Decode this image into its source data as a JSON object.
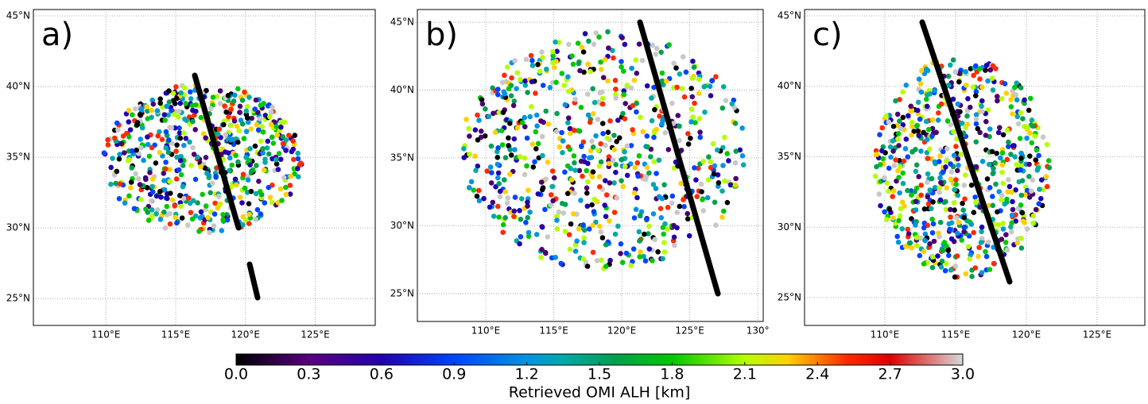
{
  "panels": [
    {
      "label": "a)",
      "lonlim": [
        104.8,
        129.3
      ],
      "latlim": [
        23.1,
        45.45
      ],
      "lat_ticks": [
        {
          "value": 45,
          "label": "45°N"
        },
        {
          "value": 40,
          "label": "40°N"
        },
        {
          "value": 35,
          "label": "35°N"
        },
        {
          "value": 30,
          "label": "30°N"
        },
        {
          "value": 25,
          "label": "25°N"
        }
      ],
      "lon_ticks": [
        {
          "value": 110,
          "label": "110°E"
        },
        {
          "value": 115,
          "label": "115°E"
        },
        {
          "value": 120,
          "label": "120°E"
        },
        {
          "value": 125,
          "label": "125°E"
        }
      ]
    },
    {
      "label": "b)",
      "lonlim": [
        104.97,
        130.4
      ],
      "latlim": [
        22.95,
        45.94
      ],
      "lat_ticks": [
        {
          "value": 45,
          "label": "45°N"
        },
        {
          "value": 40,
          "label": "40°N"
        },
        {
          "value": 35,
          "label": "35°N"
        },
        {
          "value": 30,
          "label": "30°N"
        },
        {
          "value": 25,
          "label": "25°N"
        }
      ],
      "lon_ticks": [
        {
          "value": 110,
          "label": "110°E"
        },
        {
          "value": 115,
          "label": "115°E"
        },
        {
          "value": 120,
          "label": "120°E"
        },
        {
          "value": 125,
          "label": "125°E"
        },
        {
          "value": 130,
          "label": "130°"
        }
      ]
    },
    {
      "label": "c)",
      "lonlim": [
        104.33,
        128.37
      ],
      "latlim": [
        23.03,
        45.45
      ],
      "lat_ticks": [
        {
          "value": 45,
          "label": "45°N"
        },
        {
          "value": 40,
          "label": "40°N"
        },
        {
          "value": 35,
          "label": "35°N"
        },
        {
          "value": 30,
          "label": "30°N"
        },
        {
          "value": 25,
          "label": "25°N"
        }
      ],
      "lon_ticks": [
        {
          "value": 110,
          "label": "110°E"
        },
        {
          "value": 115,
          "label": "115°E"
        },
        {
          "value": 120,
          "label": "120°E"
        },
        {
          "value": 125,
          "label": "125°E"
        }
      ]
    }
  ],
  "colorbar": {
    "label": "Retrieved OMI ALH [km]",
    "lim": [
      0,
      3
    ],
    "ticks": [
      {
        "value": 0,
        "label": "0.0"
      },
      {
        "value": 0.3,
        "label": "0.3"
      },
      {
        "value": 0.6,
        "label": "0.6"
      },
      {
        "value": 0.9,
        "label": "0.9"
      },
      {
        "value": 1.2,
        "label": "1.2"
      },
      {
        "value": 1.5,
        "label": "1.5"
      },
      {
        "value": 1.8,
        "label": "1.8"
      },
      {
        "value": 2.1,
        "label": "2.1"
      },
      {
        "value": 2.4,
        "label": "2.4"
      },
      {
        "value": 2.7,
        "label": "2.7"
      },
      {
        "value": 3.0,
        "label": "3.0"
      }
    ]
  }
}
